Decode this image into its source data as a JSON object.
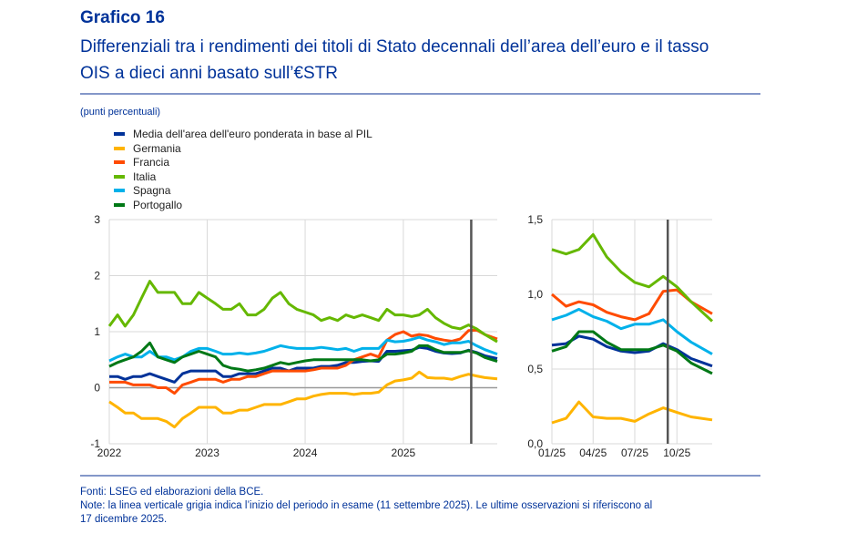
{
  "header": {
    "title": "Grafico 16",
    "subtitle_line1": "Differenziali tra i rendimenti dei titoli di Stato decennali dell’area dell’euro e il tasso",
    "subtitle_line2": "OIS a dieci anni basato sull’€STR",
    "unit": "(punti percentuali)"
  },
  "legend": [
    {
      "label": "Media dell'area dell'euro ponderata in base al PIL",
      "color": "#003299"
    },
    {
      "label": "Germania",
      "color": "#FFB400"
    },
    {
      "label": "Francia",
      "color": "#FF4B00"
    },
    {
      "label": "Italia",
      "color": "#65B800"
    },
    {
      "label": "Spagna",
      "color": "#00B1EA"
    },
    {
      "label": "Portogallo",
      "color": "#007816"
    }
  ],
  "footer": {
    "sources": "Fonti: LSEG ed elaborazioni della BCE.",
    "note_line1": "Note: la linea verticale grigia indica l’inizio del periodo in esame (11 settembre 2025). Le ultime osservazioni si riferiscono al",
    "note_line2": "17 dicembre 2025."
  },
  "chart_data": [
    {
      "type": "line",
      "xlim": [
        "2022-01-01",
        "2025-12-17"
      ],
      "ylim": [
        -1,
        3
      ],
      "yticks": [
        "3",
        "2",
        "1",
        "0",
        "-1"
      ],
      "xticks": [
        "2022",
        "2023",
        "2024",
        "2025"
      ],
      "grid": true,
      "vline": "2025-09-11",
      "x": [
        "2022-01-01",
        "2022-02-01",
        "2022-03-01",
        "2022-04-01",
        "2022-05-01",
        "2022-06-01",
        "2022-07-01",
        "2022-08-01",
        "2022-09-01",
        "2022-10-01",
        "2022-11-01",
        "2022-12-01",
        "2023-01-01",
        "2023-02-01",
        "2023-03-01",
        "2023-04-01",
        "2023-05-01",
        "2023-06-01",
        "2023-07-01",
        "2023-08-01",
        "2023-09-01",
        "2023-10-01",
        "2023-11-01",
        "2023-12-01",
        "2024-01-01",
        "2024-02-01",
        "2024-03-01",
        "2024-04-01",
        "2024-05-01",
        "2024-06-01",
        "2024-07-01",
        "2024-08-01",
        "2024-09-01",
        "2024-10-01",
        "2024-11-01",
        "2024-12-01",
        "2025-01-01",
        "2025-02-01",
        "2025-03-01",
        "2025-04-01",
        "2025-05-01",
        "2025-06-01",
        "2025-07-01",
        "2025-08-01",
        "2025-09-01",
        "2025-10-01",
        "2025-11-01",
        "2025-12-17"
      ],
      "series": [
        {
          "name": "Media dell'area dell'euro ponderata in base al PIL",
          "color": "#003299",
          "values": [
            0.2,
            0.2,
            0.15,
            0.2,
            0.2,
            0.25,
            0.2,
            0.15,
            0.1,
            0.25,
            0.3,
            0.3,
            0.3,
            0.3,
            0.2,
            0.2,
            0.25,
            0.25,
            0.25,
            0.3,
            0.35,
            0.35,
            0.3,
            0.35,
            0.35,
            0.35,
            0.38,
            0.38,
            0.4,
            0.45,
            0.45,
            0.47,
            0.48,
            0.47,
            0.65,
            0.65,
            0.66,
            0.67,
            0.72,
            0.7,
            0.65,
            0.62,
            0.61,
            0.62,
            0.67,
            0.63,
            0.57,
            0.52
          ]
        },
        {
          "name": "Germania",
          "color": "#FFB400",
          "values": [
            -0.25,
            -0.35,
            -0.45,
            -0.45,
            -0.55,
            -0.55,
            -0.55,
            -0.6,
            -0.7,
            -0.55,
            -0.45,
            -0.35,
            -0.35,
            -0.35,
            -0.45,
            -0.45,
            -0.4,
            -0.4,
            -0.35,
            -0.3,
            -0.3,
            -0.3,
            -0.25,
            -0.2,
            -0.2,
            -0.15,
            -0.12,
            -0.1,
            -0.1,
            -0.1,
            -0.12,
            -0.1,
            -0.1,
            -0.08,
            0.05,
            0.12,
            0.14,
            0.17,
            0.28,
            0.18,
            0.17,
            0.17,
            0.15,
            0.2,
            0.24,
            0.21,
            0.18,
            0.16
          ]
        },
        {
          "name": "Francia",
          "color": "#FF4B00",
          "values": [
            0.1,
            0.1,
            0.1,
            0.05,
            0.05,
            0.05,
            0.0,
            0.0,
            -0.1,
            0.05,
            0.1,
            0.15,
            0.15,
            0.15,
            0.1,
            0.15,
            0.15,
            0.2,
            0.2,
            0.25,
            0.3,
            0.3,
            0.3,
            0.3,
            0.3,
            0.32,
            0.35,
            0.35,
            0.35,
            0.4,
            0.5,
            0.55,
            0.6,
            0.55,
            0.85,
            0.95,
            1.0,
            0.92,
            0.95,
            0.93,
            0.88,
            0.85,
            0.83,
            0.87,
            1.02,
            1.03,
            0.95,
            0.87
          ]
        },
        {
          "name": "Italia",
          "color": "#65B800",
          "values": [
            1.1,
            1.3,
            1.1,
            1.3,
            1.6,
            1.9,
            1.7,
            1.7,
            1.7,
            1.5,
            1.5,
            1.7,
            1.6,
            1.5,
            1.4,
            1.4,
            1.5,
            1.3,
            1.3,
            1.4,
            1.6,
            1.7,
            1.5,
            1.4,
            1.35,
            1.3,
            1.2,
            1.25,
            1.2,
            1.3,
            1.25,
            1.3,
            1.25,
            1.2,
            1.4,
            1.3,
            1.3,
            1.27,
            1.3,
            1.4,
            1.25,
            1.15,
            1.08,
            1.05,
            1.12,
            1.05,
            0.95,
            0.82
          ]
        },
        {
          "name": "Spagna",
          "color": "#00B1EA",
          "values": [
            0.48,
            0.55,
            0.6,
            0.55,
            0.55,
            0.65,
            0.55,
            0.55,
            0.5,
            0.55,
            0.65,
            0.7,
            0.7,
            0.65,
            0.6,
            0.6,
            0.62,
            0.6,
            0.62,
            0.65,
            0.7,
            0.75,
            0.72,
            0.7,
            0.7,
            0.7,
            0.72,
            0.7,
            0.68,
            0.7,
            0.65,
            0.7,
            0.7,
            0.7,
            0.85,
            0.82,
            0.83,
            0.86,
            0.9,
            0.85,
            0.82,
            0.77,
            0.8,
            0.8,
            0.83,
            0.75,
            0.68,
            0.6
          ]
        },
        {
          "name": "Portogallo",
          "color": "#007816",
          "values": [
            0.38,
            0.45,
            0.5,
            0.55,
            0.65,
            0.8,
            0.55,
            0.5,
            0.45,
            0.55,
            0.6,
            0.65,
            0.6,
            0.55,
            0.4,
            0.35,
            0.33,
            0.3,
            0.32,
            0.35,
            0.4,
            0.45,
            0.42,
            0.45,
            0.48,
            0.5,
            0.5,
            0.5,
            0.5,
            0.5,
            0.5,
            0.5,
            0.48,
            0.5,
            0.6,
            0.6,
            0.62,
            0.65,
            0.75,
            0.75,
            0.68,
            0.63,
            0.63,
            0.63,
            0.66,
            0.62,
            0.54,
            0.47
          ]
        }
      ]
    },
    {
      "type": "line",
      "xlim": [
        "2025-01-01",
        "2025-12-17"
      ],
      "ylim": [
        0,
        1.5
      ],
      "yticks": [
        "1,5",
        "1,0",
        "0,5",
        "0,0"
      ],
      "xticks": [
        "01/25",
        "04/25",
        "07/25",
        "10/25"
      ],
      "grid": true,
      "vline": "2025-09-11",
      "x": [
        "2025-01-01",
        "2025-02-01",
        "2025-03-01",
        "2025-04-01",
        "2025-05-01",
        "2025-06-01",
        "2025-07-01",
        "2025-08-01",
        "2025-09-01",
        "2025-10-01",
        "2025-11-01",
        "2025-12-17"
      ],
      "series": [
        {
          "name": "Media dell'area dell'euro ponderata in base al PIL",
          "color": "#003299",
          "values": [
            0.66,
            0.67,
            0.72,
            0.7,
            0.65,
            0.62,
            0.61,
            0.62,
            0.67,
            0.63,
            0.57,
            0.52
          ]
        },
        {
          "name": "Germania",
          "color": "#FFB400",
          "values": [
            0.14,
            0.17,
            0.28,
            0.18,
            0.17,
            0.17,
            0.15,
            0.2,
            0.24,
            0.21,
            0.18,
            0.16
          ]
        },
        {
          "name": "Francia",
          "color": "#FF4B00",
          "values": [
            1.0,
            0.92,
            0.95,
            0.93,
            0.88,
            0.85,
            0.83,
            0.87,
            1.02,
            1.03,
            0.95,
            0.87
          ]
        },
        {
          "name": "Italia",
          "color": "#65B800",
          "values": [
            1.3,
            1.27,
            1.3,
            1.4,
            1.25,
            1.15,
            1.08,
            1.05,
            1.12,
            1.05,
            0.95,
            0.82
          ]
        },
        {
          "name": "Spagna",
          "color": "#00B1EA",
          "values": [
            0.83,
            0.86,
            0.9,
            0.85,
            0.82,
            0.77,
            0.8,
            0.8,
            0.83,
            0.75,
            0.68,
            0.6
          ]
        },
        {
          "name": "Portogallo",
          "color": "#007816",
          "values": [
            0.62,
            0.65,
            0.75,
            0.75,
            0.68,
            0.63,
            0.63,
            0.63,
            0.66,
            0.62,
            0.54,
            0.47
          ]
        }
      ]
    }
  ]
}
